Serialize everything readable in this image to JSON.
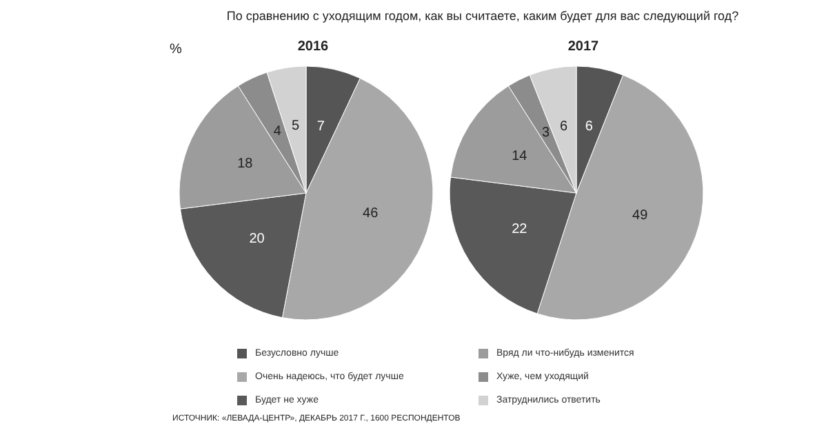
{
  "chart_data": {
    "type": "pie",
    "title": "По сравнению с уходящим годом, как вы считаете, каким будет для вас следующий год?",
    "annotations": [
      "%",
      "ИСТОЧНИК: «ЛЕВАДА-ЦЕНТР», ДЕКАБРЬ 2017 Г., 1600 РЕСПОНДЕНТОВ"
    ],
    "categories": [
      "Безусловно лучше",
      "Очень надеюсь, что будет лучше",
      "Будет не хуже",
      "Вряд ли что-нибудь изменится",
      "Хуже, чем уходящий",
      "Затруднились ответить"
    ],
    "colors": [
      "#555555",
      "#a8a8a8",
      "#595959",
      "#9c9c9c",
      "#8c8c8c",
      "#d2d2d2"
    ],
    "series": [
      {
        "name": "2016",
        "values": [
          7,
          46,
          20,
          18,
          4,
          5
        ]
      },
      {
        "name": "2017",
        "values": [
          6,
          49,
          22,
          14,
          3,
          6
        ]
      }
    ],
    "data_labels": true,
    "legend": "bottom"
  }
}
